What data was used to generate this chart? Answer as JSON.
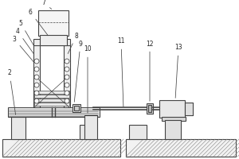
{
  "bg_color": "#ffffff",
  "lc": "#444444",
  "lw": 0.8,
  "fig_w": 3.0,
  "fig_h": 2.0,
  "dpi": 100
}
